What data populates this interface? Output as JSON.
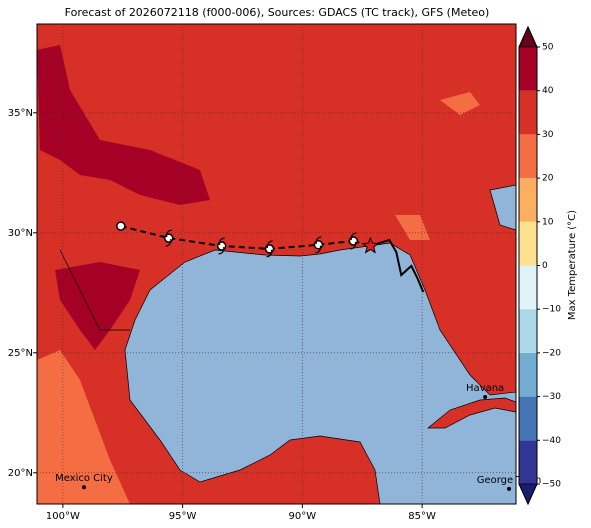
{
  "chart_data": {
    "type": "map",
    "title": "Forecast of 2026072118 (f000-006), Sources: GDACS (TC track), GFS (Meteo)",
    "xlim": [
      -101.08,
      -81.08
    ],
    "ylim": [
      18.7,
      38.7
    ],
    "xticks": [
      {
        "value": -100,
        "label": "100°W"
      },
      {
        "value": -95,
        "label": "95°W"
      },
      {
        "value": -90,
        "label": "90°W"
      },
      {
        "value": -85,
        "label": "85°W"
      }
    ],
    "yticks": [
      {
        "value": 20,
        "label": "20°N"
      },
      {
        "value": 25,
        "label": "25°N"
      },
      {
        "value": 30,
        "label": "30°N"
      },
      {
        "value": 35,
        "label": "35°N"
      }
    ],
    "grid": true,
    "forecast_track": {
      "lon": [
        -97.58,
        -95.58,
        -93.37,
        -91.37,
        -89.33,
        -87.87
      ],
      "lat": [
        30.28,
        29.78,
        29.45,
        29.33,
        29.5,
        29.66
      ]
    },
    "past_track": {
      "lon": [
        -87.16,
        -86.37,
        -86.08,
        -85.87,
        -85.45,
        -85.2,
        -84.95
      ],
      "lat": [
        29.45,
        29.7,
        29.2,
        28.24,
        28.62,
        28.12,
        27.53
      ]
    },
    "cities": [
      {
        "name": "Mexico City",
        "lon": -99.12,
        "lat": 19.4
      },
      {
        "name": "Havana",
        "lon": -82.37,
        "lat": 23.16
      },
      {
        "name": "George Town",
        "lon": -81.37,
        "lat": 19.33
      }
    ],
    "colorbar": {
      "label": "Max Temperature (°C)",
      "levels": [
        -50,
        -40,
        -30,
        -20,
        -10,
        0,
        10,
        20,
        30,
        40,
        50
      ],
      "colors": [
        "#313695",
        "#4575b4",
        "#74add1",
        "#abd9e9",
        "#e0f3f8",
        "#fee090",
        "#fdae61",
        "#f46d43",
        "#d73027",
        "#a50026"
      ],
      "ticks": [
        {
          "value": -50,
          "label": "−50"
        },
        {
          "value": -40,
          "label": "−40"
        },
        {
          "value": -30,
          "label": "−30"
        },
        {
          "value": -20,
          "label": "−20"
        },
        {
          "value": -10,
          "label": "−10"
        },
        0,
        10,
        20,
        30,
        40,
        50
      ]
    }
  }
}
